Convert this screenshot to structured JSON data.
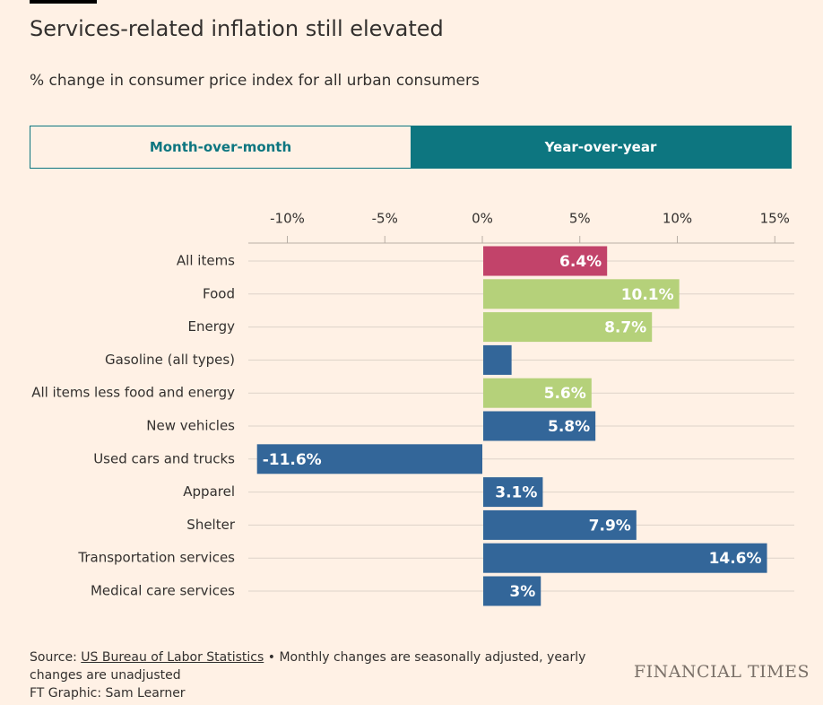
{
  "chart_data": {
    "type": "bar",
    "orientation": "horizontal",
    "title": "Services-related inflation still elevated",
    "subtitle": "% change in consumer price index for all urban consumers",
    "tabs": [
      "Month-over-month",
      "Year-over-year"
    ],
    "active_tab": 1,
    "categories": [
      "All items",
      "Food",
      "Energy",
      "Gasoline (all types)",
      "All items less food and energy",
      "New vehicles",
      "Used cars and trucks",
      "Apparel",
      "Shelter",
      "Transportation services",
      "Medical care services"
    ],
    "values": [
      6.4,
      10.1,
      8.7,
      1.5,
      5.6,
      5.8,
      -11.6,
      3.1,
      7.9,
      14.6,
      3
    ],
    "value_labels": [
      "6.4%",
      "10.1%",
      "8.7%",
      null,
      "5.6%",
      "5.8%",
      "-11.6%",
      "3.1%",
      "7.9%",
      "14.6%",
      "3%"
    ],
    "colors": [
      "#c2436a",
      "#b5d17a",
      "#b5d17a",
      "#336699",
      "#b5d17a",
      "#336699",
      "#336699",
      "#336699",
      "#336699",
      "#336699",
      "#336699"
    ],
    "xlim": [
      -12,
      16
    ],
    "xticks": [
      {
        "value": -10,
        "label": "-10%"
      },
      {
        "value": -5,
        "label": "-5%"
      },
      {
        "value": 0,
        "label": "0%"
      },
      {
        "value": 5,
        "label": "5%"
      },
      {
        "value": 10,
        "label": "10%"
      },
      {
        "value": 15,
        "label": "15%"
      }
    ],
    "grid": true,
    "source": "Source:",
    "source_link": "US Bureau of Labor Statistics",
    "note": "• Monthly changes are seasonally adjusted, yearly changes are unadjusted",
    "credit": "FT Graphic: Sam Learner",
    "brand": "FINANCIAL TIMES"
  }
}
